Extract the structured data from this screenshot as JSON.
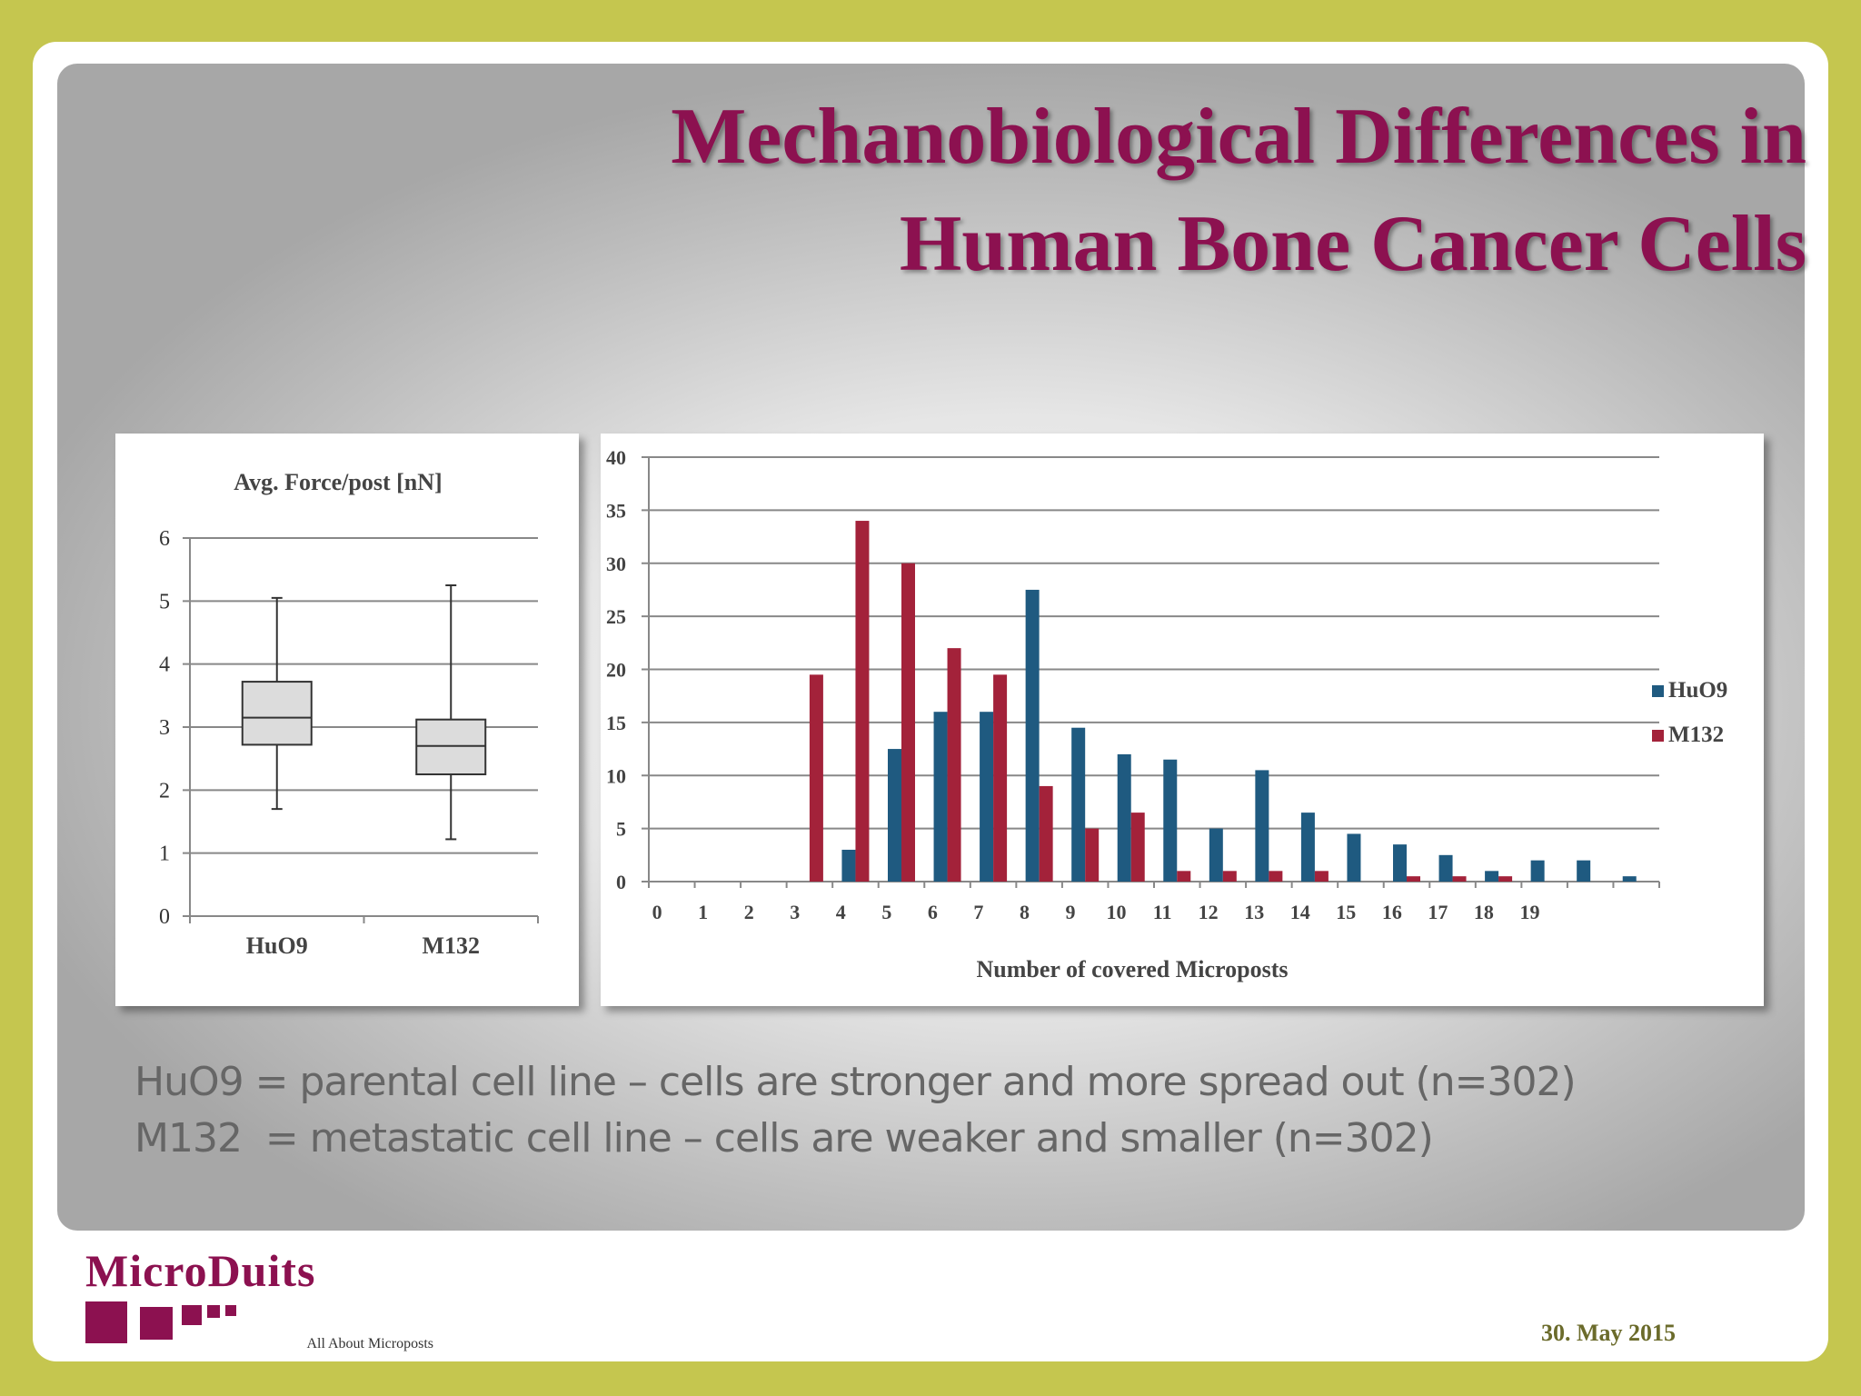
{
  "title": {
    "line1": "Mechanobiological Differences in",
    "line2": "Human Bone Cancer Cells"
  },
  "caption": [
    "HuO9 = parental cell line – cells are stronger and more spread out (n=302)",
    "M132  = metastatic cell line – cells are weaker and smaller (n=302)"
  ],
  "logo": {
    "name": "MicroDuits",
    "tagline": "All About Microposts"
  },
  "date": "30. May 2015",
  "colors": {
    "title": "#8c1150",
    "huo9": "#1f5a80",
    "m132": "#a3223a",
    "frame": "#c5c64f",
    "logo": "#8c1150"
  },
  "chart_data": [
    {
      "type": "box",
      "title": "Avg. Force/post [nN]",
      "categories": [
        "HuO9",
        "M132"
      ],
      "ylim": [
        0,
        6
      ],
      "yticks": [
        0,
        1,
        2,
        3,
        4,
        5,
        6
      ],
      "boxes": [
        {
          "name": "HuO9",
          "min": 1.7,
          "q1": 2.72,
          "median": 3.15,
          "q3": 3.72,
          "max": 5.05
        },
        {
          "name": "M132",
          "min": 1.22,
          "q1": 2.25,
          "median": 2.7,
          "q3": 3.12,
          "max": 5.25
        }
      ],
      "grid": true
    },
    {
      "type": "bar",
      "xlabel": "Number of covered Microposts",
      "ylabel": "",
      "categories": [
        "0",
        "1",
        "2",
        "3",
        "4",
        "5",
        "6",
        "7",
        "8",
        "9",
        "10",
        "11",
        "12",
        "13",
        "14",
        "15",
        "16",
        "17",
        "18",
        "19",
        "",
        ""
      ],
      "ylim": [
        0,
        40
      ],
      "yticks": [
        0,
        5,
        10,
        15,
        20,
        25,
        30,
        35,
        40
      ],
      "series": [
        {
          "name": "HuO9",
          "values": [
            0,
            0,
            0,
            0,
            3,
            12.5,
            16,
            16,
            27.5,
            14.5,
            12,
            11.5,
            5,
            10.5,
            6.5,
            4.5,
            3.5,
            2.5,
            1,
            2,
            2,
            0.5
          ]
        },
        {
          "name": "M132",
          "values": [
            0,
            0,
            0,
            19.5,
            34,
            30,
            22,
            19.5,
            9,
            5,
            6.5,
            1,
            1,
            1,
            1,
            0,
            0.5,
            0.5,
            0.5,
            0,
            0,
            0
          ]
        }
      ],
      "legend": "right",
      "grid": true
    }
  ]
}
